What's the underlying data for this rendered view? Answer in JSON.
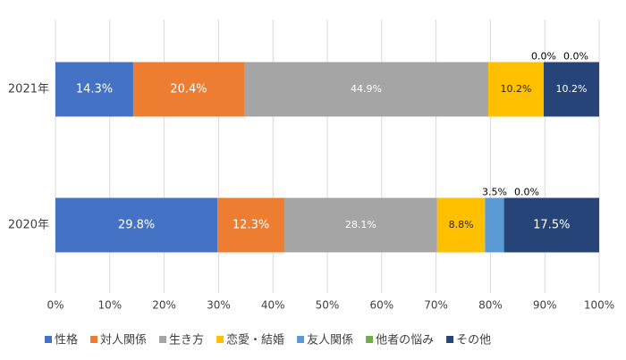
{
  "chart_data": {
    "type": "stacked-bar-horizontal",
    "categories": [
      "2021年",
      "2020年"
    ],
    "series": [
      {
        "name": "性格",
        "color": "#4472c4",
        "values": [
          14.3,
          29.8
        ],
        "value_labels": [
          "14.3%",
          "29.8%"
        ]
      },
      {
        "name": "対人関係",
        "color": "#ed7d31",
        "values": [
          20.4,
          12.3
        ],
        "value_labels": [
          "20.4%",
          "12.3%"
        ]
      },
      {
        "name": "生き方",
        "color": "#a5a5a5",
        "values": [
          44.9,
          28.1
        ],
        "value_labels": [
          "44.9%",
          "28.1%"
        ]
      },
      {
        "name": "恋愛・結婚",
        "color": "#ffc000",
        "values": [
          10.2,
          8.8
        ],
        "value_labels": [
          "10.2%",
          "8.8%"
        ]
      },
      {
        "name": "友人関係",
        "color": "#5b9bd5",
        "values": [
          0.0,
          3.5
        ],
        "value_labels": [
          "0.0%",
          "3.5%"
        ]
      },
      {
        "name": "他者の悩み",
        "color": "#70ad47",
        "values": [
          0.0,
          0.0
        ],
        "value_labels": [
          "0.0%",
          "0.0%"
        ]
      },
      {
        "name": "その他",
        "color": "#264478",
        "values": [
          10.2,
          17.5
        ],
        "value_labels": [
          "10.2%",
          "17.5%"
        ]
      }
    ],
    "xlim": [
      0,
      100
    ],
    "xticks": [
      {
        "value": 0,
        "label": "0%"
      },
      {
        "value": 10,
        "label": "10%"
      },
      {
        "value": 20,
        "label": "20%"
      },
      {
        "value": 30,
        "label": "30%"
      },
      {
        "value": 40,
        "label": "40%"
      },
      {
        "value": 50,
        "label": "50%"
      },
      {
        "value": 60,
        "label": "60%"
      },
      {
        "value": 70,
        "label": "70%"
      },
      {
        "value": 80,
        "label": "80%"
      },
      {
        "value": 90,
        "label": "90%"
      },
      {
        "value": 100,
        "label": "100%"
      }
    ],
    "grid": true,
    "legend": "bottom"
  }
}
